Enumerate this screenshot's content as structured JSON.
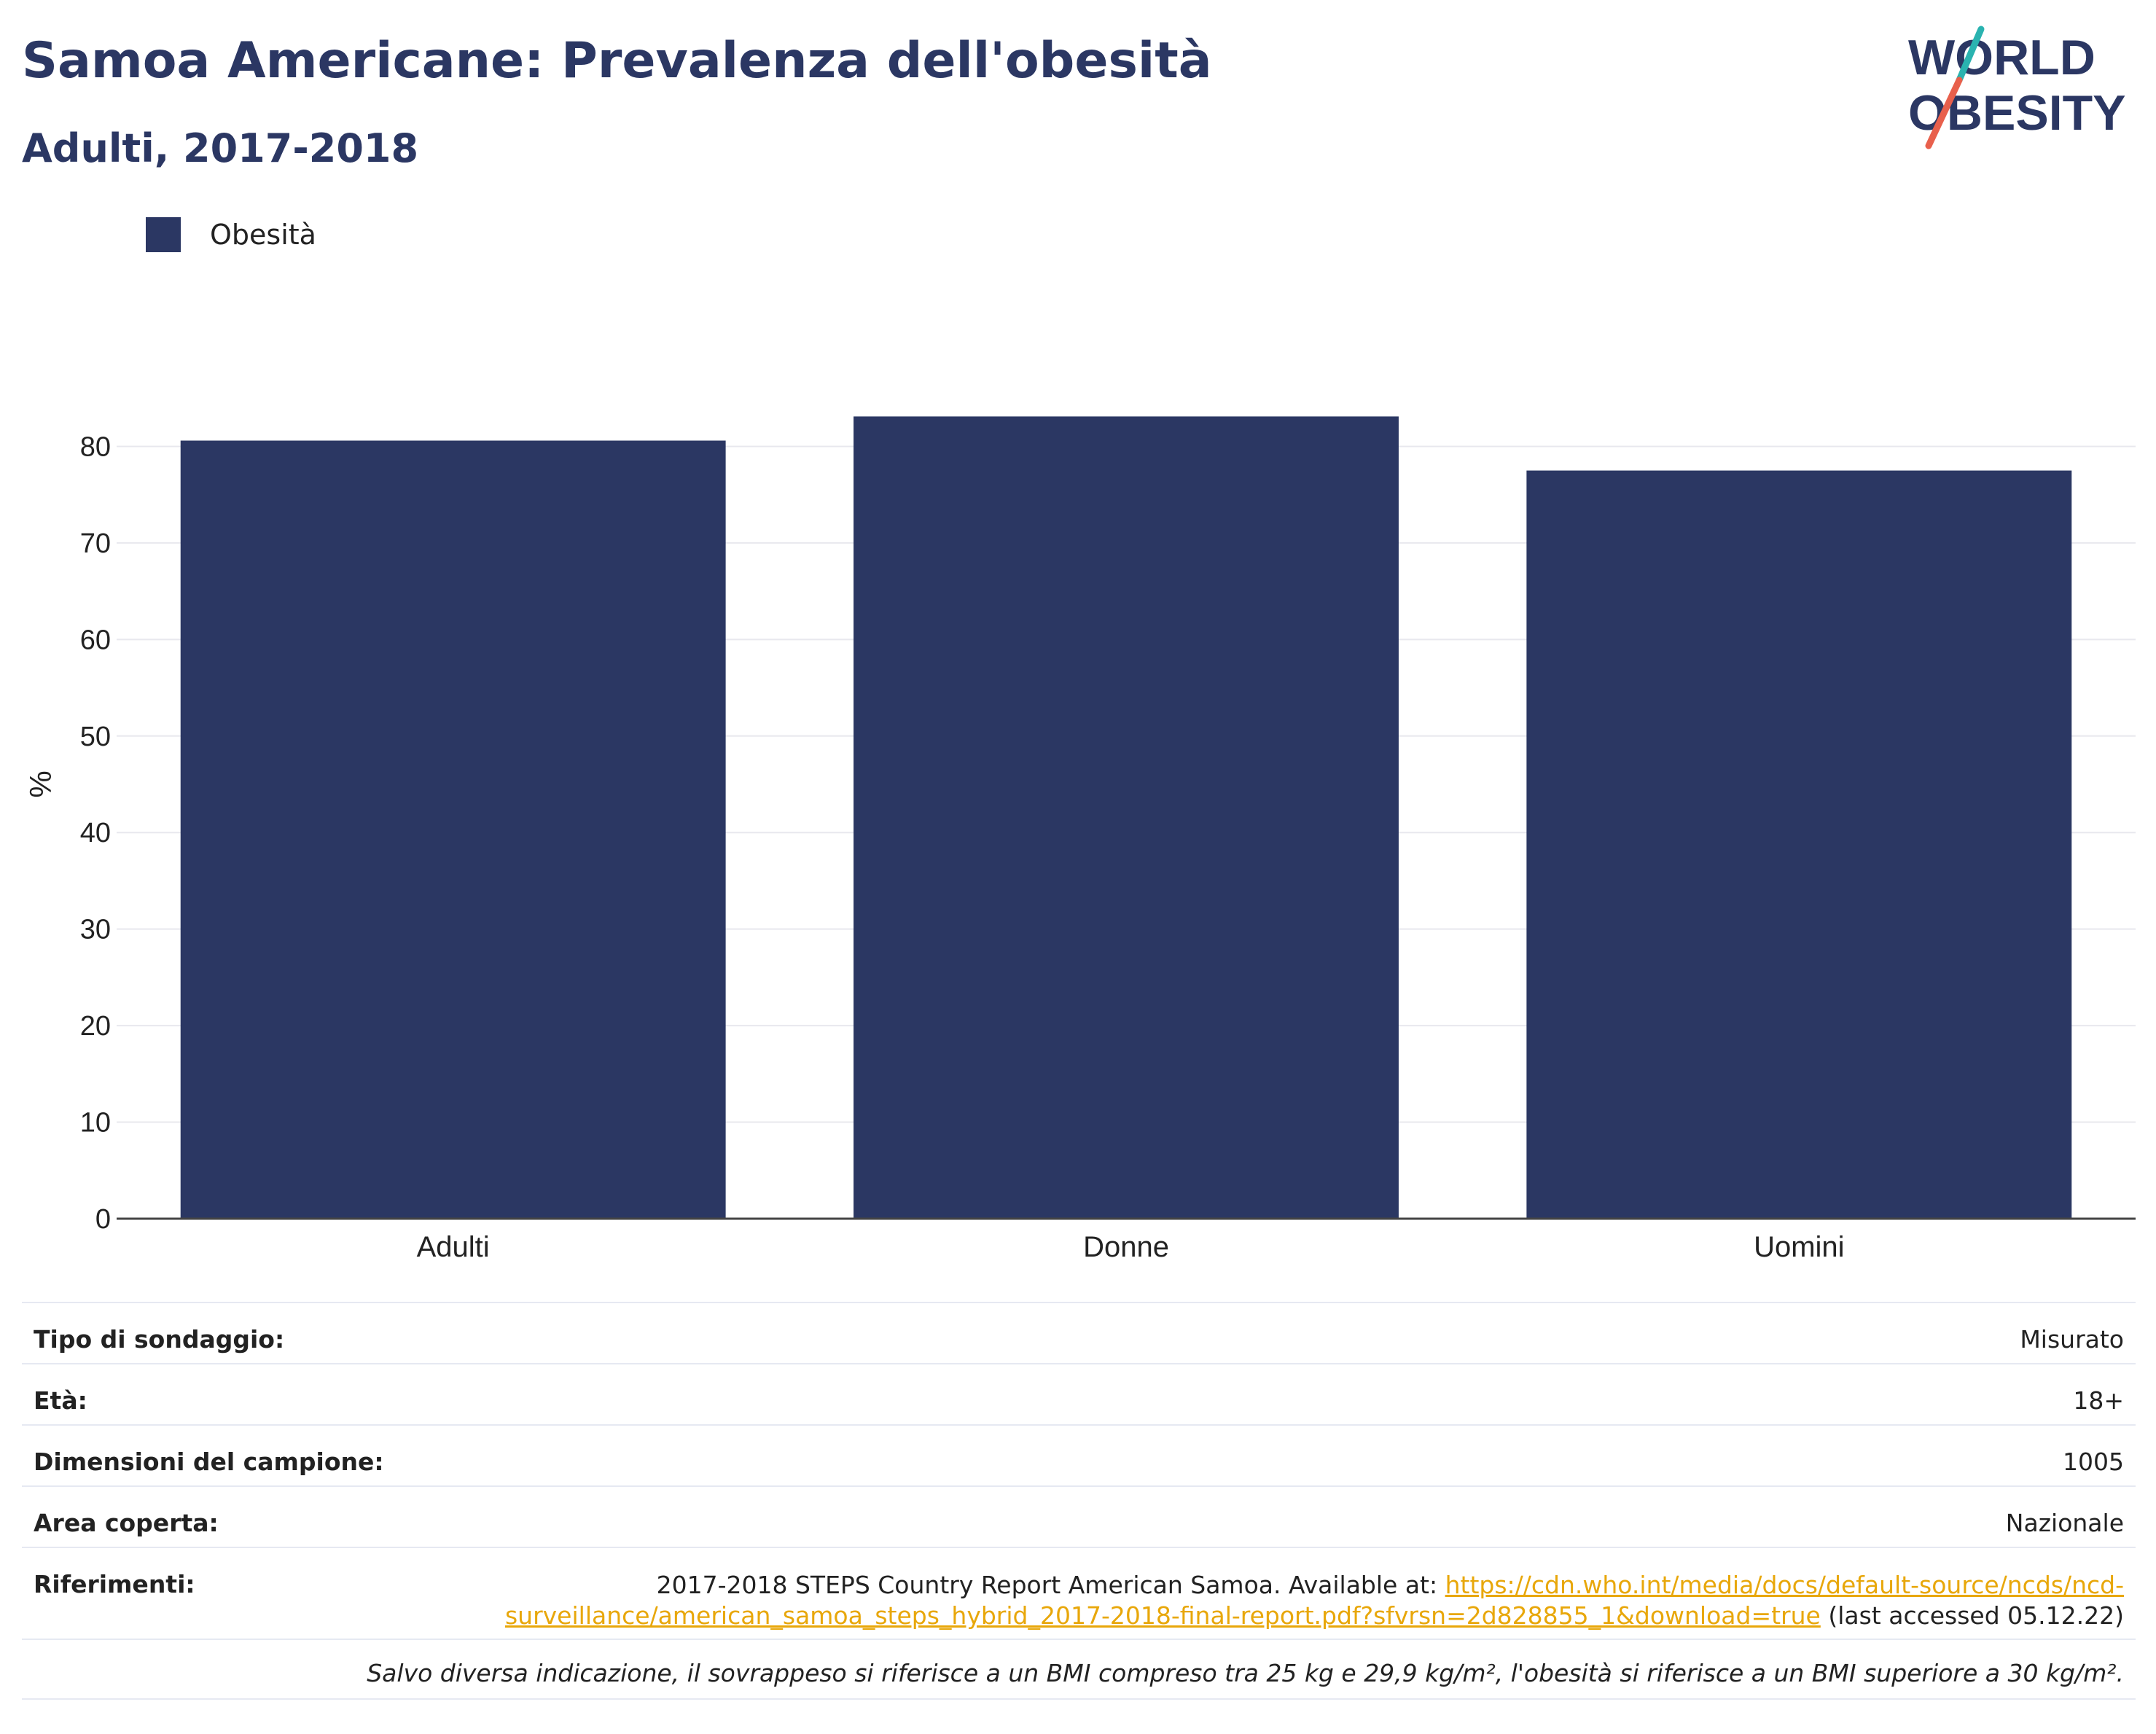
{
  "header": {
    "title": "Samoa Americane: Prevalenza dell'obesità",
    "subtitle": "Adulti, 2017-2018"
  },
  "logo": {
    "line1": "WORLD",
    "line2": "OBESITY",
    "colors": {
      "text": "#2b3763",
      "slash_teal": "#2ab3b0",
      "slash_red": "#e8604c"
    }
  },
  "legend": {
    "label": "Obesità",
    "color": "#2b3763"
  },
  "chart_data": {
    "type": "bar",
    "categories": [
      "Adulti",
      "Donne",
      "Uomini"
    ],
    "series": [
      {
        "name": "Obesità",
        "values": [
          80.6,
          83.1,
          77.5
        ]
      }
    ],
    "title": "Samoa Americane: Prevalenza dell'obesità",
    "subtitle": "Adulti, 2017-2018",
    "xlabel": "",
    "ylabel": "%",
    "ylim": [
      0,
      90
    ],
    "yticks": [
      0,
      10,
      20,
      30,
      40,
      50,
      60,
      70,
      80
    ],
    "grid": true,
    "legend_position": "top-left",
    "bar_color": "#2b3763"
  },
  "info": {
    "survey_type": {
      "label": "Tipo di sondaggio:",
      "value": "Misurato"
    },
    "age": {
      "label": "Età:",
      "value": "18+"
    },
    "sample_size": {
      "label": "Dimensioni del campione:",
      "value": "1005"
    },
    "area": {
      "label": "Area coperta:",
      "value": "Nazionale"
    },
    "references": {
      "label": "Riferimenti:",
      "text_before": "2017-2018 STEPS Country Report American Samoa. Available at: ",
      "link": "https://cdn.who.int/media/docs/default-source/ncds/ncd-surveillance/american_samoa_steps_hybrid_2017-2018-final-report.pdf?sfvrsn=2d828855_1&download=true",
      "text_after": " (last accessed 05.12.22)"
    },
    "footnote": "Salvo diversa indicazione, il sovrappeso si riferisce a un BMI compreso tra 25 kg e 29,9 kg/m², l'obesità si riferisce a un BMI superiore a 30 kg/m²."
  }
}
